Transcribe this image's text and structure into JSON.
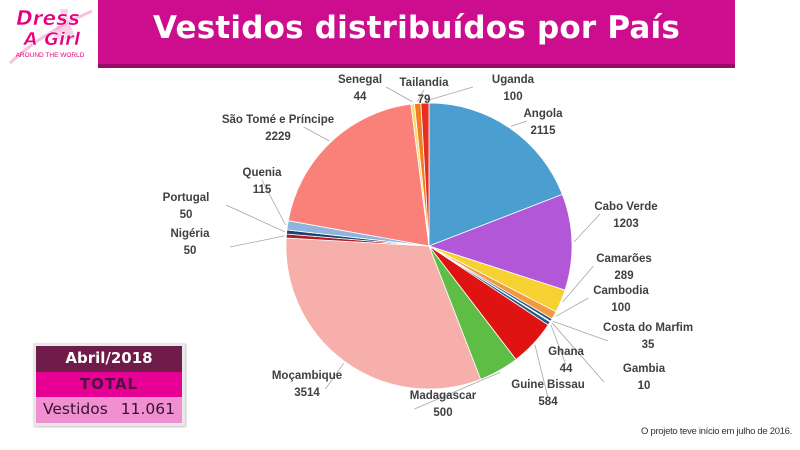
{
  "header": {
    "title": "Vestidos distribuídos por País"
  },
  "logo": {
    "line1": "Dress",
    "line2": "A Girl",
    "tagline": "AROUND THE WORLD"
  },
  "chart_data": {
    "type": "pie",
    "title": "Vestidos distribuídos por País",
    "start_angle_deg": 0,
    "direction": "clockwise",
    "slices": [
      {
        "label": "Angola",
        "value": 2115,
        "color": "#4b9fd0"
      },
      {
        "label": "Cabo Verde",
        "value": 1203,
        "color": "#b157d8"
      },
      {
        "label": "Camarões",
        "value": 289,
        "color": "#f5d132"
      },
      {
        "label": "Cambodia",
        "value": 100,
        "color": "#f39a3e"
      },
      {
        "label": "Costa do Marfim",
        "value": 35,
        "color": "#2b4f86"
      },
      {
        "label": "Gambia",
        "value": 10,
        "color": "#6e6e6e"
      },
      {
        "label": "Ghana",
        "value": 44,
        "color": "#1f5a8a"
      },
      {
        "label": "Guine Bissau",
        "value": 584,
        "color": "#e01313"
      },
      {
        "label": "Madagascar",
        "value": 500,
        "color": "#5dbd45"
      },
      {
        "label": "Moçambique",
        "value": 3514,
        "color": "#f6afaa"
      },
      {
        "label": "Nigéria",
        "value": 50,
        "color": "#b11a20"
      },
      {
        "label": "Portugal",
        "value": 50,
        "color": "#1d3f72"
      },
      {
        "label": "Quenia",
        "value": 115,
        "color": "#8fb4de"
      },
      {
        "label": "São Tomé e Príncipe",
        "value": 2229,
        "color": "#fa8179"
      },
      {
        "label": "Senegal",
        "value": 44,
        "color": "#f7dc6e"
      },
      {
        "label": "Tailandia",
        "value": 79,
        "color": "#f37d22"
      },
      {
        "label": "Uganda",
        "value": 100,
        "color": "#e62e22"
      }
    ]
  },
  "totals": {
    "date": "Abril/2018",
    "heading": "TOTAL",
    "label": "Vestidos",
    "value": "11.061"
  },
  "footnote": "O projeto teve início em julho de 2016."
}
